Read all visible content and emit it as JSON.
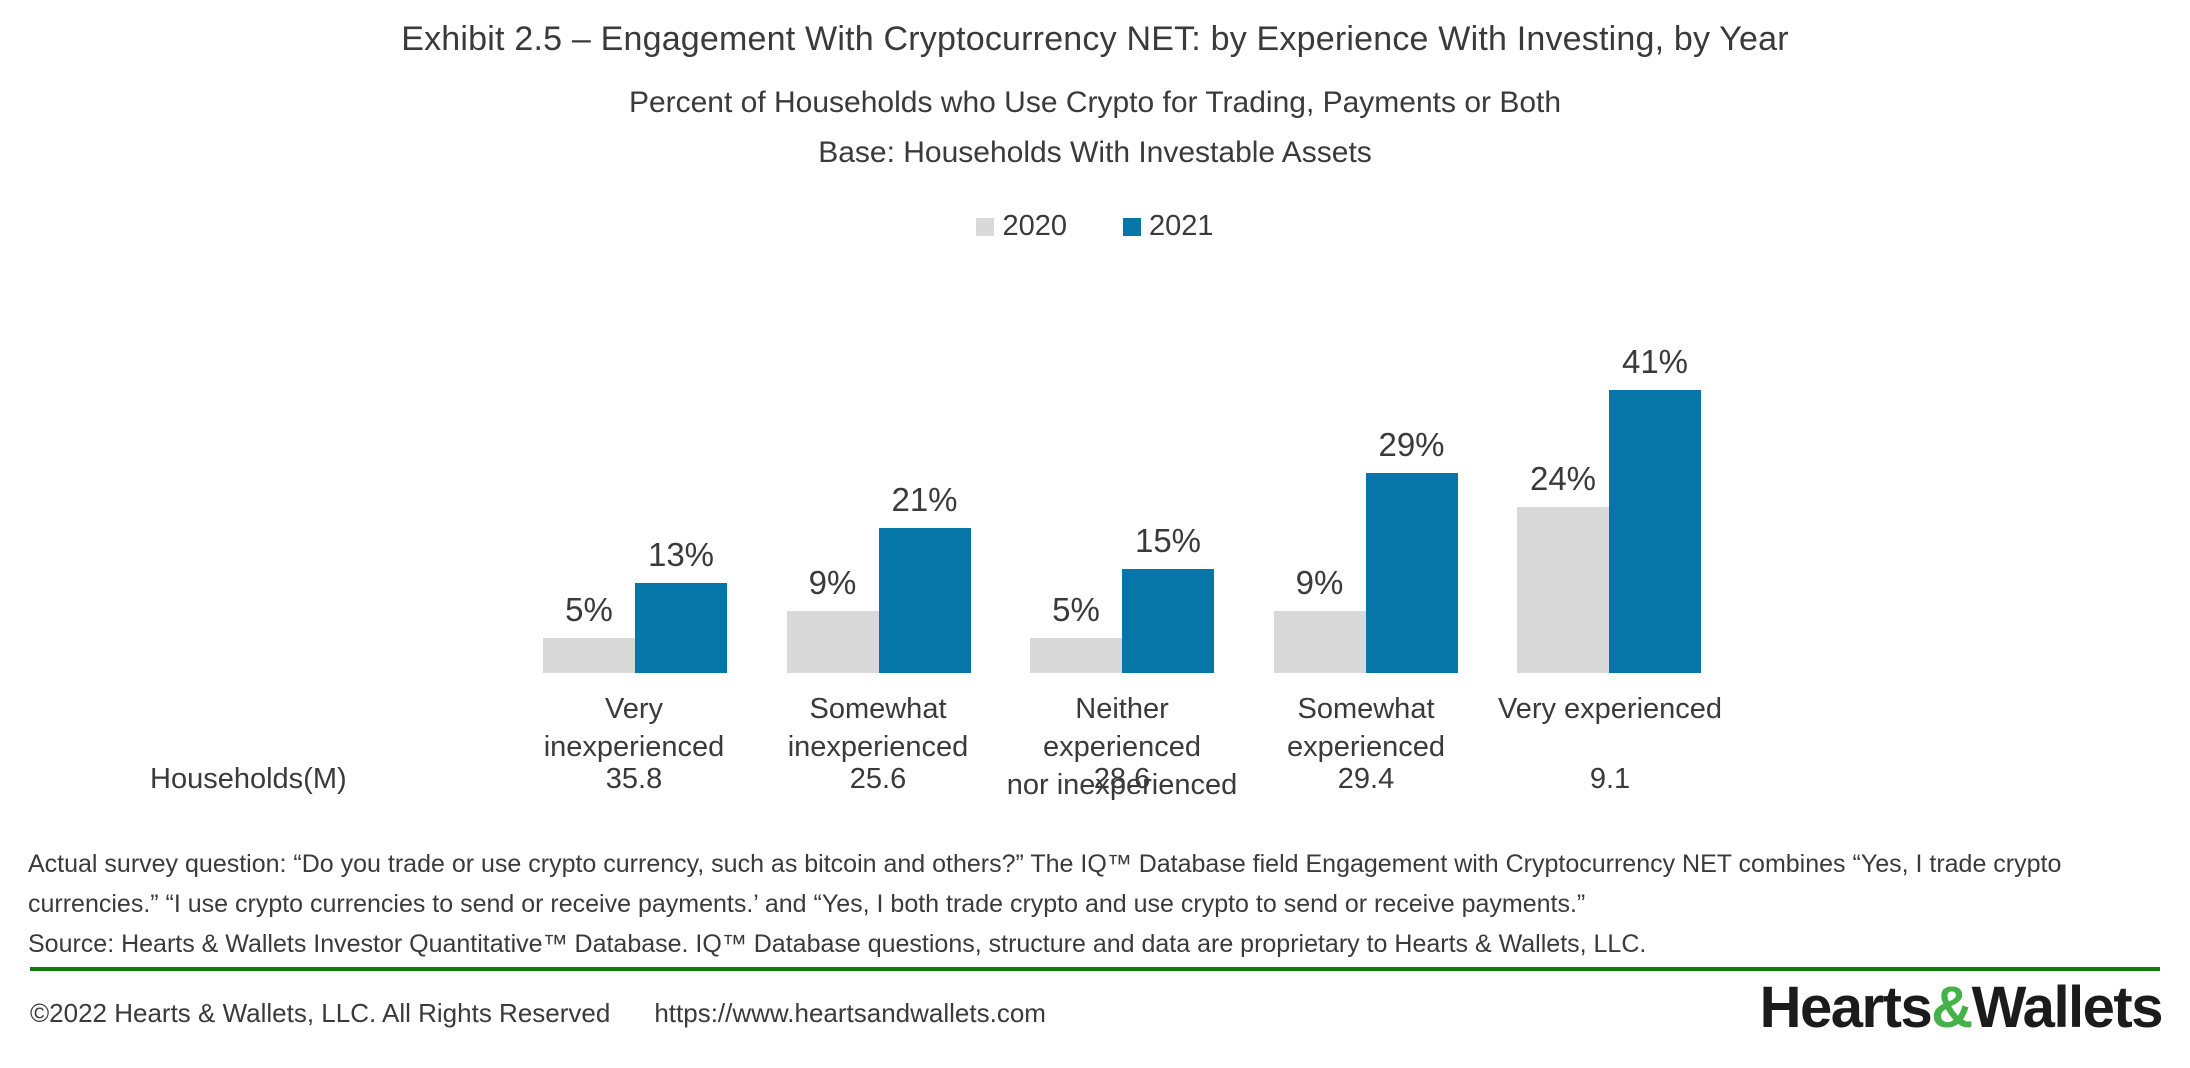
{
  "header": {
    "title": "Exhibit 2.5 – Engagement With Cryptocurrency NET: by Experience With Investing, by Year",
    "subtitle": "Percent of Households who Use Crypto for Trading, Payments or Both",
    "base_note": "Base: Households With Investable Assets"
  },
  "chart_data": {
    "type": "bar",
    "title": "Engagement With Cryptocurrency NET: by Experience With Investing, by Year",
    "categories": [
      "Very inexperienced",
      "Somewhat inexperienced",
      "Neither experienced nor inexperienced",
      "Somewhat experienced",
      "Very experienced"
    ],
    "category_label_lines": [
      [
        "Very inexperienced"
      ],
      [
        "Somewhat",
        "inexperienced"
      ],
      [
        "Neither experienced",
        "nor inexperienced"
      ],
      [
        "Somewhat",
        "experienced"
      ],
      [
        "Very experienced"
      ]
    ],
    "series": [
      {
        "name": "2020",
        "color": "#d9d9d9",
        "values": [
          5,
          9,
          5,
          9,
          24
        ]
      },
      {
        "name": "2021",
        "color": "#0675a8",
        "values": [
          13,
          21,
          15,
          29,
          41
        ]
      }
    ],
    "value_suffix": "%",
    "ylim": [
      0,
      45
    ],
    "grid": false,
    "legend_position": "top-center",
    "households_label": "Households(M)",
    "households_m": [
      35.8,
      25.6,
      28.6,
      29.4,
      9.1
    ]
  },
  "footnote": {
    "line1": "Actual survey question: “Do you trade or use crypto currency, such as bitcoin and others?” The IQ™ Database field Engagement with Cryptocurrency NET combines “Yes, I trade crypto",
    "line2": "currencies.” “I use crypto currencies to send or receive payments.’ and “Yes, I both trade crypto and use crypto to send or receive payments.”",
    "source": "Source: Hearts & Wallets Investor Quantitative™ Database. IQ™ Database questions, structure and data are proprietary to Hearts & Wallets, LLC."
  },
  "footer": {
    "divider_color": "#117d11",
    "copyright": "©2022 Hearts & Wallets, LLC. All Rights Reserved",
    "url": "https://www.heartsandwallets.com",
    "logo": {
      "part1": "Hearts",
      "amp": "&",
      "part2": "Wallets",
      "amp_color": "#45b249"
    }
  }
}
